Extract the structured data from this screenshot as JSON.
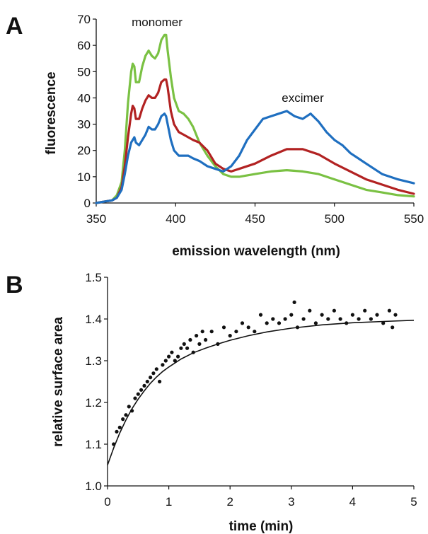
{
  "chart_data": [
    {
      "panel": "A",
      "type": "line",
      "xlabel": "emission wavelength (nm)",
      "ylabel": "fluorescence",
      "xlim": [
        350,
        550
      ],
      "ylim": [
        0,
        70
      ],
      "xticks": [
        350,
        400,
        450,
        500,
        550
      ],
      "yticks": [
        0,
        10,
        20,
        30,
        40,
        50,
        60,
        70
      ],
      "annotations": [
        {
          "text": "monomer",
          "x": 390,
          "y": 66
        },
        {
          "text": "excimer",
          "x": 477,
          "y": 38
        }
      ],
      "series": [
        {
          "color": "#7ac143",
          "x": [
            350,
            355,
            360,
            363,
            366,
            368,
            370,
            372,
            373,
            374,
            375,
            377,
            379,
            381,
            383,
            385,
            387,
            389,
            391,
            393,
            394,
            395,
            397,
            399,
            402,
            405,
            408,
            411,
            415,
            420,
            425,
            430,
            435,
            440,
            450,
            460,
            470,
            480,
            490,
            500,
            510,
            520,
            530,
            540,
            550
          ],
          "y": [
            0,
            0.5,
            1,
            3,
            8,
            20,
            38,
            50,
            53,
            52,
            46,
            46,
            52,
            56,
            58,
            56,
            55,
            57,
            62,
            64,
            64,
            58,
            48,
            40,
            35,
            34,
            32,
            29,
            23,
            18,
            14,
            11,
            10,
            10,
            11,
            12,
            12.5,
            12,
            11,
            9,
            7,
            5,
            4,
            3,
            2.5
          ]
        },
        {
          "color": "#b22222",
          "x": [
            350,
            355,
            360,
            363,
            366,
            368,
            370,
            372,
            373,
            374,
            375,
            377,
            379,
            381,
            383,
            385,
            387,
            389,
            391,
            393,
            394,
            395,
            397,
            399,
            402,
            405,
            408,
            411,
            415,
            420,
            425,
            430,
            435,
            440,
            450,
            460,
            470,
            480,
            490,
            500,
            510,
            520,
            530,
            540,
            550
          ],
          "y": [
            0,
            0.5,
            1,
            2,
            6,
            14,
            25,
            34,
            37,
            36,
            32,
            32,
            36,
            39,
            41,
            40,
            40,
            42,
            46,
            47,
            47,
            44,
            35,
            30,
            27,
            26,
            25,
            24,
            23,
            20,
            15,
            13,
            12,
            13,
            15,
            18,
            20.5,
            20.5,
            18.5,
            15,
            12,
            9,
            7,
            5,
            3.5
          ]
        },
        {
          "color": "#1f6fc0",
          "x": [
            350,
            355,
            360,
            363,
            366,
            368,
            370,
            372,
            373,
            374,
            375,
            377,
            379,
            381,
            383,
            385,
            387,
            389,
            391,
            393,
            394,
            395,
            397,
            399,
            402,
            405,
            408,
            411,
            415,
            420,
            425,
            430,
            435,
            440,
            445,
            450,
            455,
            460,
            465,
            470,
            475,
            480,
            485,
            490,
            495,
            500,
            505,
            510,
            520,
            530,
            540,
            550
          ],
          "y": [
            0,
            0.5,
            1,
            2,
            5,
            11,
            18,
            23,
            24,
            25,
            23,
            22,
            24,
            26,
            29,
            28,
            28,
            30,
            33,
            34,
            33,
            30,
            24,
            20,
            18,
            18,
            18,
            17,
            16,
            14,
            13,
            12,
            14,
            18,
            24,
            28,
            32,
            33,
            34,
            35,
            33,
            32,
            34,
            31,
            27,
            24,
            22,
            19,
            15,
            11,
            9,
            7.5
          ]
        }
      ]
    },
    {
      "panel": "B",
      "type": "scatter",
      "xlabel": "time (min)",
      "ylabel": "relative surface area",
      "xlim": [
        0,
        5
      ],
      "ylim": [
        1.0,
        1.5
      ],
      "xticks": [
        0,
        1,
        2,
        3,
        4,
        5
      ],
      "yticks": [
        1.0,
        1.1,
        1.2,
        1.3,
        1.4,
        1.5
      ],
      "fit": {
        "color": "#111111",
        "x": [
          0,
          0.1,
          0.2,
          0.3,
          0.4,
          0.5,
          0.6,
          0.7,
          0.8,
          0.9,
          1.0,
          1.2,
          1.4,
          1.6,
          1.8,
          2.0,
          2.3,
          2.6,
          3.0,
          3.5,
          4.0,
          4.5,
          5.0
        ],
        "y": [
          1.05,
          1.091,
          1.127,
          1.158,
          1.185,
          1.208,
          1.228,
          1.246,
          1.261,
          1.274,
          1.285,
          1.304,
          1.319,
          1.33,
          1.34,
          1.349,
          1.36,
          1.369,
          1.378,
          1.386,
          1.391,
          1.394,
          1.397
        ]
      },
      "points": {
        "color": "#111111",
        "x": [
          0.1,
          0.15,
          0.2,
          0.25,
          0.3,
          0.35,
          0.4,
          0.45,
          0.5,
          0.55,
          0.6,
          0.65,
          0.7,
          0.75,
          0.8,
          0.85,
          0.9,
          0.95,
          1.0,
          1.05,
          1.1,
          1.15,
          1.2,
          1.25,
          1.3,
          1.35,
          1.4,
          1.45,
          1.5,
          1.55,
          1.6,
          1.7,
          1.8,
          1.9,
          2.0,
          2.1,
          2.2,
          2.3,
          2.4,
          2.5,
          2.6,
          2.7,
          2.8,
          2.9,
          3.0,
          3.05,
          3.1,
          3.2,
          3.3,
          3.4,
          3.5,
          3.6,
          3.7,
          3.8,
          3.9,
          4.0,
          4.1,
          4.2,
          4.3,
          4.4,
          4.5,
          4.6,
          4.65,
          4.7
        ],
        "y": [
          1.1,
          1.13,
          1.14,
          1.16,
          1.17,
          1.19,
          1.18,
          1.21,
          1.22,
          1.23,
          1.24,
          1.25,
          1.26,
          1.27,
          1.28,
          1.25,
          1.29,
          1.3,
          1.31,
          1.32,
          1.3,
          1.31,
          1.33,
          1.34,
          1.33,
          1.35,
          1.32,
          1.36,
          1.34,
          1.37,
          1.35,
          1.37,
          1.34,
          1.38,
          1.36,
          1.37,
          1.39,
          1.38,
          1.37,
          1.41,
          1.39,
          1.4,
          1.39,
          1.4,
          1.41,
          1.44,
          1.38,
          1.4,
          1.42,
          1.39,
          1.41,
          1.4,
          1.42,
          1.4,
          1.39,
          1.41,
          1.4,
          1.42,
          1.4,
          1.41,
          1.39,
          1.42,
          1.38,
          1.41
        ]
      }
    }
  ]
}
